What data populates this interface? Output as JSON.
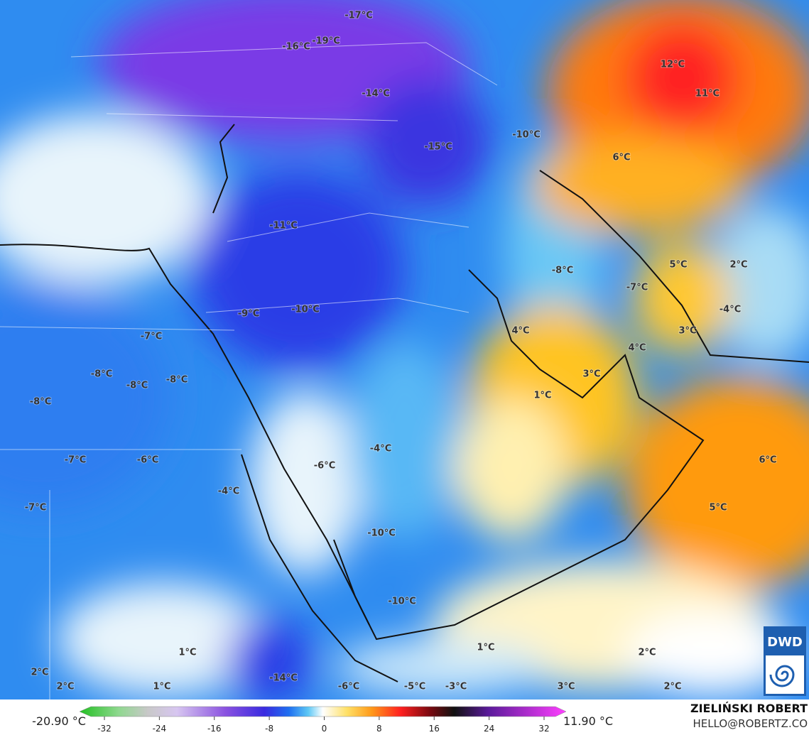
{
  "map": {
    "labels": [
      "-17°C",
      "-16°C",
      "-19°C",
      "-14°C",
      "12°C",
      "11°C",
      "-10°C",
      "-15°C",
      "6°C",
      "-11°C",
      "5°C",
      "2°C",
      "-8°C",
      "-7°C",
      "-4°C",
      "-9°C",
      "-10°C",
      "4°C",
      "3°C",
      "-7°C",
      "4°C",
      "3°C",
      "-8°C",
      "-8°C",
      "-8°C",
      "1°C",
      "-8°C",
      "-4°C",
      "-7°C",
      "-6°C",
      "-6°C",
      "6°C",
      "-4°C",
      "-7°C",
      "5°C",
      "-10°C",
      "-10°C",
      "1°C",
      "2°C",
      "1°C",
      "2°C",
      "-14°C",
      "2°C",
      "1°C",
      "-6°C",
      "-5°C",
      "-3°C",
      "3°C",
      "2°C"
    ]
  },
  "legend": {
    "min_label": "-20.90 °C",
    "max_label": "11.90 °C",
    "ticks": [
      -32,
      -24,
      -16,
      -8,
      0,
      8,
      16,
      24,
      32
    ]
  },
  "credit": {
    "name": "ZIELIŃSKI ROBERT",
    "contact": "HELLO@ROBERTZ.CO"
  },
  "logo": "DWD"
}
